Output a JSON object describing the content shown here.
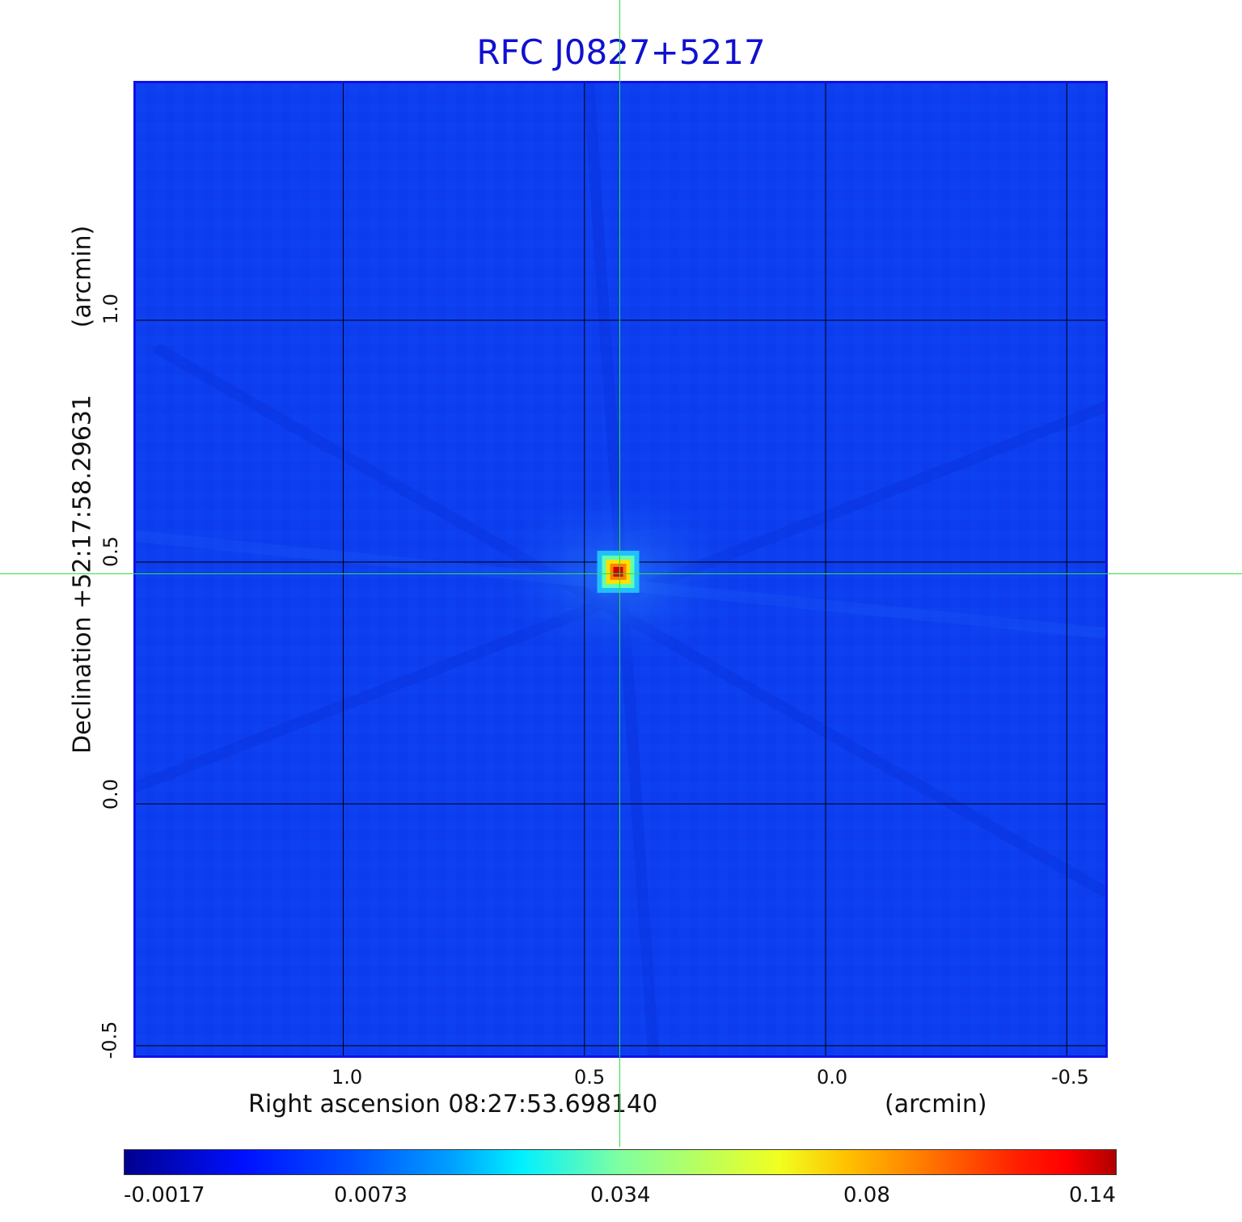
{
  "title": "RFC J0827+5217",
  "colors": {
    "title": "#1010d0",
    "background_map": "#0d3ef0",
    "frame": "#1010e8",
    "crosshair": "#30e040",
    "grid": "#000000"
  },
  "axes": {
    "x_label": "Right ascension  08:27:53.698140",
    "x_unit": "(arcmin)",
    "y_label": "Declination  +52:17:58.29631",
    "y_unit": "(arcmin)",
    "x_ticks": [
      "1.0",
      "0.5",
      "0.0",
      "-0.5"
    ],
    "y_ticks": [
      "1.0",
      "0.5",
      "0.0",
      "-0.5"
    ]
  },
  "colorbar": {
    "labels": [
      "-0.0017",
      "0.0073",
      "0.034",
      "0.08",
      "0.14"
    ],
    "colormap": "jet"
  },
  "chart_data": {
    "type": "heatmap",
    "title": "RFC J0827+5217",
    "xlabel": "Right ascension  08:27:53.698140 (arcmin)",
    "ylabel": "Declination  +52:17:58.29631 (arcmin)",
    "xlim": [
      1.43,
      -0.58
    ],
    "ylim": [
      -0.52,
      1.49
    ],
    "x_ticks": [
      1.0,
      0.5,
      0.0,
      -0.5
    ],
    "y_ticks": [
      1.0,
      0.5,
      0.0,
      -0.5
    ],
    "grid": true,
    "source_peak": {
      "x": 0.43,
      "y": 0.48,
      "value": 0.14
    },
    "colorbar_ticks": [
      -0.0017,
      0.0073,
      0.034,
      0.08,
      0.14
    ],
    "colorbar_range": [
      -0.0017,
      0.14
    ],
    "crosshair": {
      "x": 0.43,
      "y": 0.48
    }
  }
}
